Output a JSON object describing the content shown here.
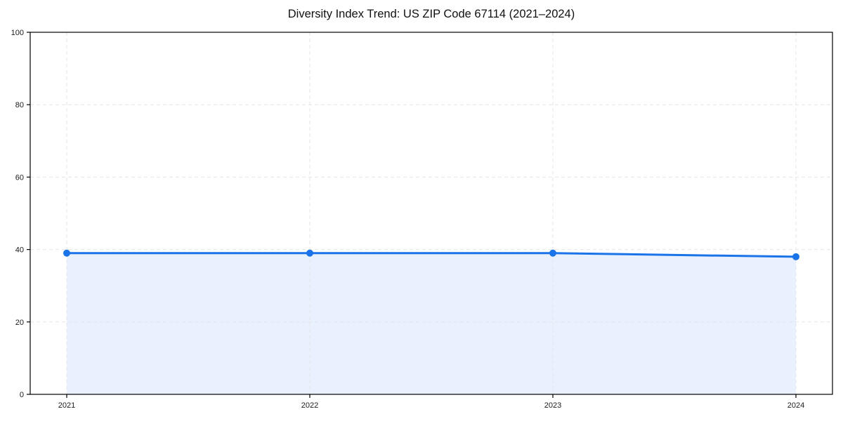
{
  "chart_data": {
    "type": "area",
    "title": "Diversity Index Trend: US ZIP Code 67114 (2021–2024)",
    "categories": [
      "2021",
      "2022",
      "2023",
      "2024"
    ],
    "series": [
      {
        "name": "Diversity Index",
        "values": [
          39,
          39,
          39,
          38
        ]
      }
    ],
    "xlabel": "",
    "ylabel": "",
    "ylim": [
      0,
      100
    ],
    "yticks": [
      0,
      20,
      40,
      60,
      80,
      100
    ],
    "grid": true,
    "grid_style": "dashed",
    "legend_position": "none",
    "colors": {
      "line": "#1a73e8",
      "marker": "#1a73e8",
      "fill": "#e8f1fd",
      "grid": "#e6e6e8",
      "spine": "#000000",
      "tick_text": "#1a1a1a",
      "background": "#ffffff"
    }
  }
}
